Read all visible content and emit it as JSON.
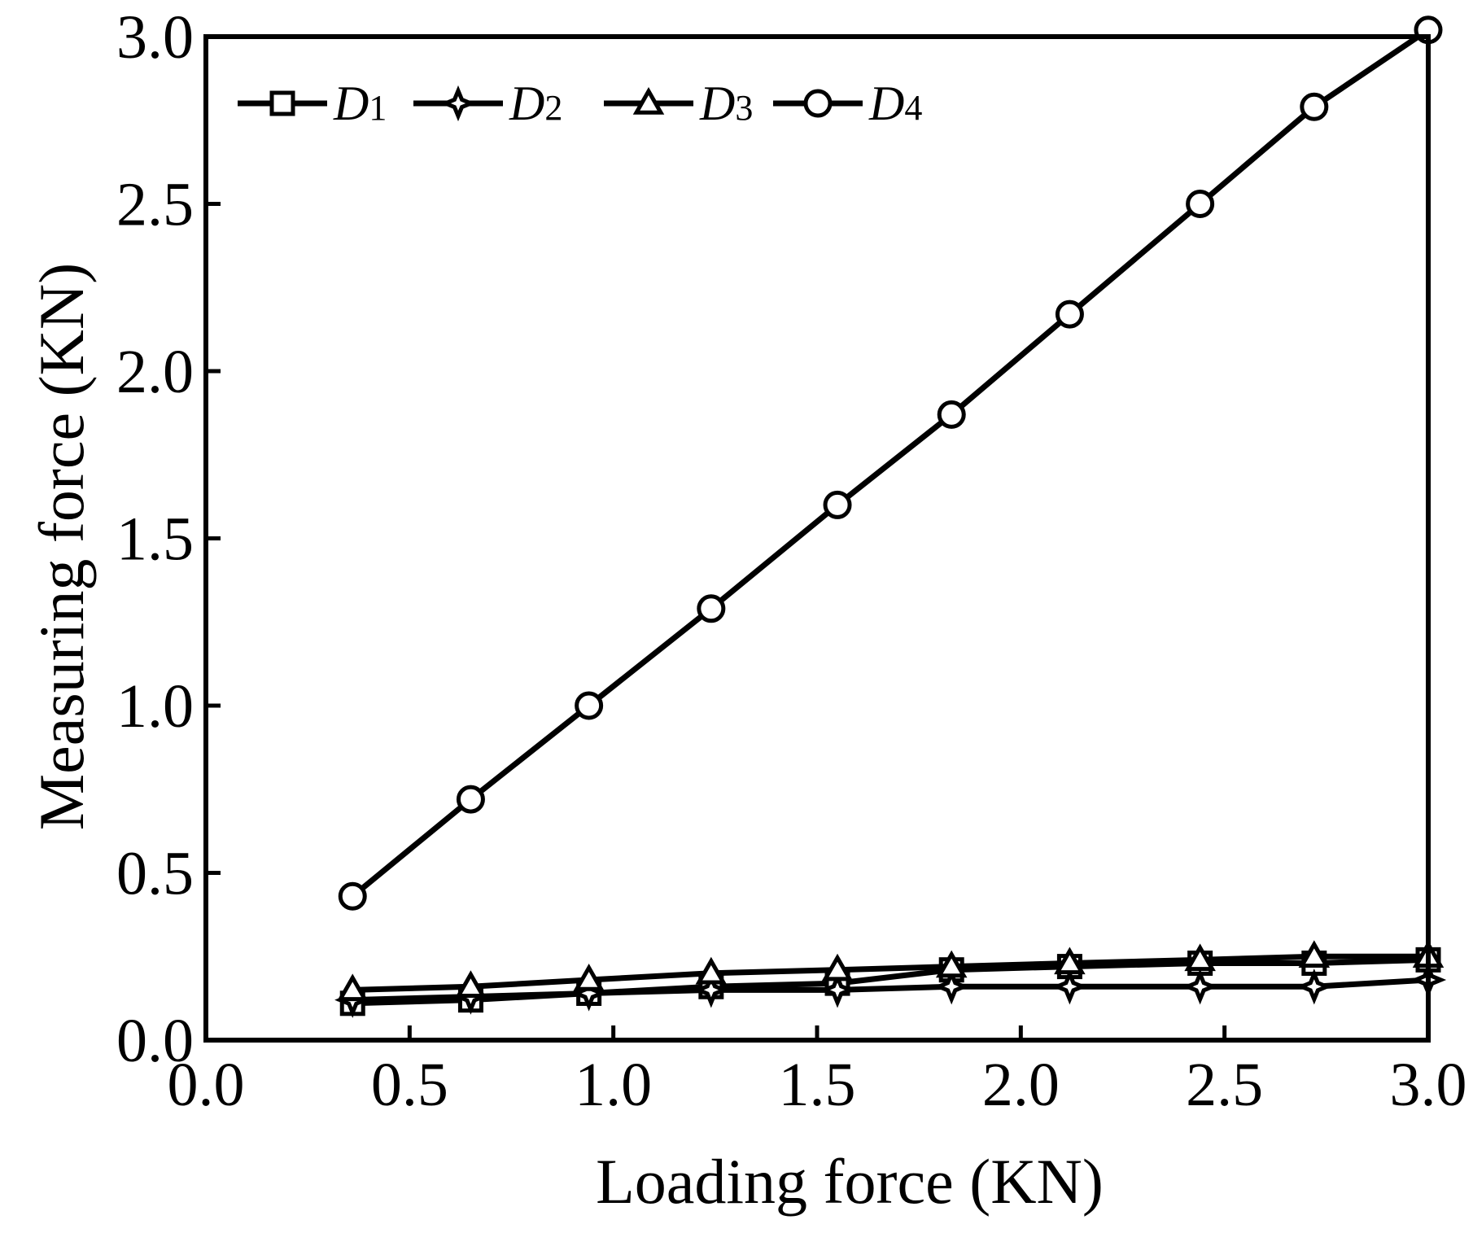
{
  "chart_data": {
    "type": "line",
    "xlabel": "Loading force  (KN)",
    "ylabel": "Measuring force  (KN)",
    "xlim": [
      0.0,
      3.0
    ],
    "ylim": [
      0.0,
      3.0
    ],
    "xticks": [
      "0.0",
      "0.5",
      "1.0",
      "1.5",
      "2.0",
      "2.5",
      "3.0"
    ],
    "yticks": [
      "0.0",
      "0.5",
      "1.0",
      "1.5",
      "2.0",
      "2.5",
      "3.0"
    ],
    "grid": false,
    "legend_position": "top-left",
    "x": [
      0.36,
      0.65,
      0.94,
      1.24,
      1.55,
      1.83,
      2.12,
      2.44,
      2.72,
      3.0
    ],
    "series": [
      {
        "name": "D1",
        "name_main": "D",
        "name_sub": "1",
        "marker": "square",
        "values": [
          0.11,
          0.12,
          0.14,
          0.16,
          0.17,
          0.21,
          0.22,
          0.23,
          0.23,
          0.24
        ]
      },
      {
        "name": "D2",
        "name_main": "D",
        "name_sub": "2",
        "marker": "star4",
        "values": [
          0.12,
          0.13,
          0.14,
          0.15,
          0.15,
          0.16,
          0.16,
          0.16,
          0.16,
          0.18
        ]
      },
      {
        "name": "D3",
        "name_main": "D",
        "name_sub": "3",
        "marker": "triangle",
        "values": [
          0.15,
          0.16,
          0.18,
          0.2,
          0.21,
          0.22,
          0.23,
          0.24,
          0.25,
          0.25
        ]
      },
      {
        "name": "D4",
        "name_main": "D",
        "name_sub": "4",
        "marker": "circle",
        "values": [
          0.43,
          0.72,
          1.0,
          1.29,
          1.6,
          1.87,
          2.17,
          2.5,
          2.79,
          3.02
        ]
      }
    ]
  }
}
